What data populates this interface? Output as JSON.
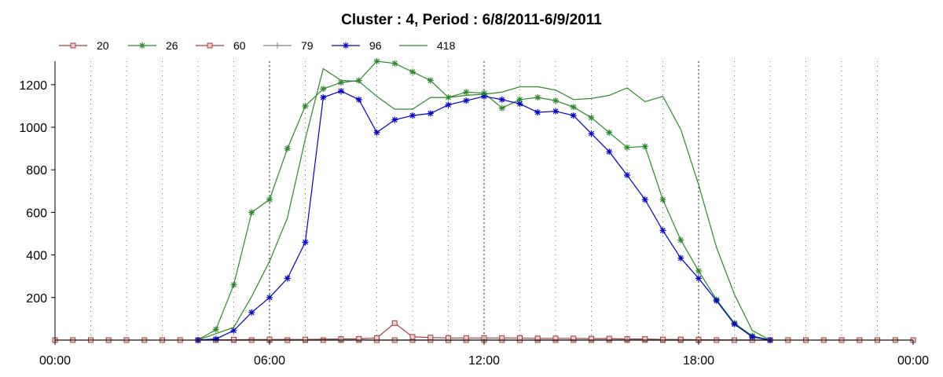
{
  "chart_data": {
    "type": "line",
    "title": "Cluster : 4, Period : 6/8/2011-6/9/2011",
    "xlabel": "",
    "ylabel": "",
    "x_range_hours": [
      0,
      24
    ],
    "ylim": [
      0,
      1310
    ],
    "x_ticks": [
      {
        "hour": 0,
        "label": "00:00"
      },
      {
        "hour": 6,
        "label": "06:00"
      },
      {
        "hour": 12,
        "label": "12:00"
      },
      {
        "hour": 18,
        "label": "18:00"
      },
      {
        "hour": 24,
        "label": "00:00"
      }
    ],
    "y_ticks": [
      200,
      400,
      600,
      800,
      1000,
      1200
    ],
    "grid": true,
    "legend_position": "top-left",
    "series": [
      {
        "name": "20",
        "color": "#a04040",
        "marker": "square",
        "points": [
          [
            0,
            0
          ],
          [
            0.5,
            0
          ],
          [
            1,
            0
          ],
          [
            1.5,
            0
          ],
          [
            2,
            0
          ],
          [
            2.5,
            0
          ],
          [
            3,
            0
          ],
          [
            3.5,
            0
          ],
          [
            4,
            0
          ],
          [
            4.5,
            0
          ],
          [
            5,
            0
          ],
          [
            5.5,
            0
          ],
          [
            6,
            0
          ],
          [
            6.5,
            0
          ],
          [
            7,
            0
          ],
          [
            7.5,
            0
          ],
          [
            8,
            0
          ],
          [
            8.5,
            0
          ],
          [
            9,
            0
          ],
          [
            9.5,
            0
          ],
          [
            10,
            0
          ],
          [
            10.5,
            0
          ],
          [
            11,
            0
          ],
          [
            11.5,
            0
          ],
          [
            12,
            0
          ],
          [
            12.5,
            0
          ],
          [
            13,
            0
          ],
          [
            13.5,
            0
          ],
          [
            14,
            0
          ],
          [
            14.5,
            0
          ],
          [
            15,
            0
          ],
          [
            15.5,
            0
          ],
          [
            16,
            0
          ],
          [
            16.5,
            0
          ],
          [
            17,
            0
          ],
          [
            17.5,
            0
          ],
          [
            18,
            0
          ],
          [
            18.5,
            0
          ],
          [
            19,
            0
          ],
          [
            19.5,
            0
          ],
          [
            20,
            0
          ],
          [
            20.5,
            0
          ],
          [
            21,
            0
          ],
          [
            21.5,
            0
          ],
          [
            22,
            0
          ],
          [
            22.5,
            0
          ],
          [
            23,
            0
          ],
          [
            23.5,
            0
          ],
          [
            24,
            0
          ]
        ]
      },
      {
        "name": "26",
        "color": "#2a8a2a",
        "marker": "star",
        "points": [
          [
            4,
            0
          ],
          [
            4.5,
            50
          ],
          [
            5,
            260
          ],
          [
            5.5,
            600
          ],
          [
            6,
            660
          ],
          [
            6.5,
            900
          ],
          [
            7,
            1100
          ],
          [
            7.5,
            1180
          ],
          [
            8,
            1210
          ],
          [
            8.5,
            1220
          ],
          [
            9,
            1310
          ],
          [
            9.5,
            1300
          ],
          [
            10,
            1260
          ],
          [
            10.5,
            1220
          ],
          [
            11,
            1140
          ],
          [
            11.5,
            1165
          ],
          [
            12,
            1160
          ],
          [
            12.5,
            1090
          ],
          [
            13,
            1130
          ],
          [
            13.5,
            1140
          ],
          [
            14,
            1125
          ],
          [
            14.5,
            1095
          ],
          [
            15,
            1045
          ],
          [
            15.5,
            975
          ],
          [
            16,
            905
          ],
          [
            16.5,
            910
          ],
          [
            17,
            660
          ],
          [
            17.5,
            470
          ],
          [
            18,
            325
          ],
          [
            18.5,
            190
          ],
          [
            19,
            80
          ],
          [
            19.5,
            20
          ],
          [
            20,
            0
          ]
        ]
      },
      {
        "name": "60",
        "color": "#a04040",
        "marker": "square",
        "points": [
          [
            4,
            0
          ],
          [
            5,
            2
          ],
          [
            6,
            3
          ],
          [
            7,
            3
          ],
          [
            8,
            5
          ],
          [
            8.5,
            6
          ],
          [
            9,
            10
          ],
          [
            9.5,
            80
          ],
          [
            10,
            15
          ],
          [
            10.5,
            12
          ],
          [
            11,
            10
          ],
          [
            11.5,
            10
          ],
          [
            12,
            10
          ],
          [
            12.5,
            10
          ],
          [
            13,
            10
          ],
          [
            13.5,
            8
          ],
          [
            14,
            8
          ],
          [
            14.5,
            8
          ],
          [
            15,
            7
          ],
          [
            15.5,
            7
          ],
          [
            16,
            5
          ],
          [
            16.5,
            5
          ],
          [
            17,
            3
          ],
          [
            17.5,
            3
          ],
          [
            18,
            2
          ],
          [
            19,
            0
          ],
          [
            20,
            0
          ]
        ]
      },
      {
        "name": "79",
        "color": "#808080",
        "marker": "plus",
        "points": [
          [
            4,
            0
          ],
          [
            8,
            0
          ],
          [
            12,
            0
          ],
          [
            16,
            0
          ],
          [
            20,
            0
          ]
        ]
      },
      {
        "name": "96",
        "color": "#0000cc",
        "marker": "star",
        "points": [
          [
            4,
            0
          ],
          [
            4.5,
            5
          ],
          [
            5,
            45
          ],
          [
            5.5,
            130
          ],
          [
            6,
            200
          ],
          [
            6.5,
            290
          ],
          [
            7,
            460
          ],
          [
            7.5,
            1140
          ],
          [
            8,
            1170
          ],
          [
            8.5,
            1130
          ],
          [
            9,
            975
          ],
          [
            9.5,
            1035
          ],
          [
            10,
            1055
          ],
          [
            10.5,
            1065
          ],
          [
            11,
            1105
          ],
          [
            11.5,
            1125
          ],
          [
            12,
            1145
          ],
          [
            12.5,
            1130
          ],
          [
            13,
            1110
          ],
          [
            13.5,
            1070
          ],
          [
            14,
            1075
          ],
          [
            14.5,
            1055
          ],
          [
            15,
            970
          ],
          [
            15.5,
            885
          ],
          [
            16,
            775
          ],
          [
            16.5,
            660
          ],
          [
            17,
            515
          ],
          [
            17.5,
            385
          ],
          [
            18,
            290
          ],
          [
            18.5,
            185
          ],
          [
            19,
            75
          ],
          [
            19.5,
            15
          ],
          [
            20,
            0
          ]
        ]
      },
      {
        "name": "418",
        "color": "#2a8a2a",
        "marker": "none",
        "points": [
          [
            4,
            0
          ],
          [
            5,
            60
          ],
          [
            5.5,
            205
          ],
          [
            6,
            370
          ],
          [
            6.5,
            575
          ],
          [
            7,
            945
          ],
          [
            7.5,
            1275
          ],
          [
            8,
            1220
          ],
          [
            8.5,
            1215
          ],
          [
            9,
            1145
          ],
          [
            9.5,
            1085
          ],
          [
            10,
            1085
          ],
          [
            10.5,
            1140
          ],
          [
            11,
            1140
          ],
          [
            11.5,
            1150
          ],
          [
            12,
            1155
          ],
          [
            12.5,
            1165
          ],
          [
            13,
            1190
          ],
          [
            13.5,
            1190
          ],
          [
            14,
            1175
          ],
          [
            14.5,
            1130
          ],
          [
            15,
            1135
          ],
          [
            15.5,
            1150
          ],
          [
            16,
            1185
          ],
          [
            16.5,
            1120
          ],
          [
            17,
            1145
          ],
          [
            17.5,
            990
          ],
          [
            18,
            730
          ],
          [
            18.5,
            435
          ],
          [
            19,
            215
          ],
          [
            19.5,
            45
          ],
          [
            20,
            0
          ]
        ]
      }
    ]
  }
}
